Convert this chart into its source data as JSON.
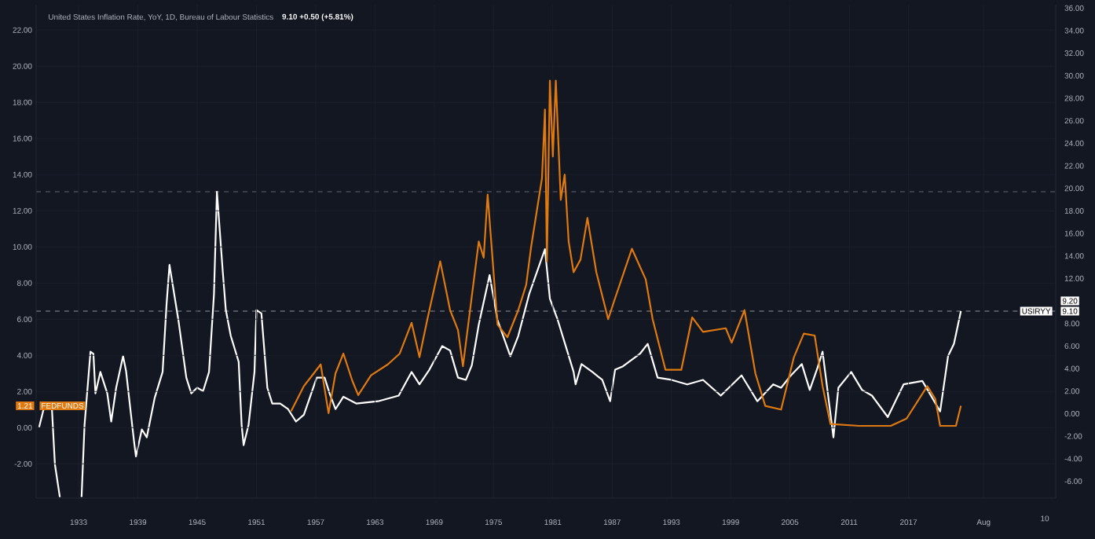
{
  "chart_data": {
    "type": "line",
    "title": "United States Inflation Rate, YoY, 1D, Bureau of Labour Statistics",
    "subtitle": "9.10 +0.50 (+5.81%)",
    "xlim": [
      1928.7,
      2031.9
    ],
    "xticks": [
      1933,
      1939,
      1945,
      1951,
      1957,
      1963,
      1969,
      1975,
      1981,
      1987,
      1993,
      1999,
      2005,
      2011,
      2017,
      {
        "value": 2024.6,
        "label": "Aug"
      }
    ],
    "ylim": [
      -3.9,
      23.4
    ],
    "yticks": [
      {
        "value": -2,
        "label": "-2.00"
      },
      {
        "value": 0,
        "label": "0.00"
      },
      {
        "value": 2,
        "label": "2.00"
      },
      {
        "value": 4,
        "label": "4.00"
      },
      {
        "value": 6,
        "label": "6.00"
      },
      {
        "value": 8,
        "label": "8.00"
      },
      {
        "value": 10,
        "label": "10.00"
      },
      {
        "value": 12,
        "label": "12.00"
      },
      {
        "value": 14,
        "label": "14.00"
      },
      {
        "value": 16,
        "label": "16.00"
      },
      {
        "value": 18,
        "label": "18.00"
      },
      {
        "value": 20,
        "label": "20.00"
      },
      {
        "value": 22,
        "label": "22.00"
      }
    ],
    "y2lim": [
      -7.5,
      36.3
    ],
    "y2ticks": [
      {
        "value": -6,
        "label": "-6.00"
      },
      {
        "value": -4,
        "label": "-4.00"
      },
      {
        "value": -2,
        "label": "-2.00"
      },
      {
        "value": 0,
        "label": "0.00"
      },
      {
        "value": 2,
        "label": "2.00"
      },
      {
        "value": 4,
        "label": "4.00"
      },
      {
        "value": 6,
        "label": "6.00"
      },
      {
        "value": 8,
        "label": "8.00"
      },
      {
        "value": 12,
        "label": "12.00"
      },
      {
        "value": 14,
        "label": "14.00"
      },
      {
        "value": 16,
        "label": "16.00"
      },
      {
        "value": 18,
        "label": "18.00"
      },
      {
        "value": 20,
        "label": "20.00"
      },
      {
        "value": 22,
        "label": "22.00"
      },
      {
        "value": 24,
        "label": "24.00"
      },
      {
        "value": 26,
        "label": "26.00"
      },
      {
        "value": 28,
        "label": "28.00"
      },
      {
        "value": 30,
        "label": "30.00"
      },
      {
        "value": 32,
        "label": "32.00"
      },
      {
        "value": 34,
        "label": "34.00"
      },
      {
        "value": 36,
        "label": "36.00"
      }
    ],
    "grid": true,
    "marker": "none",
    "series": [
      {
        "name": "FEDFUNDS",
        "color": "#e07a10",
        "x": [
          1954.5,
          1955.8,
          1956.8,
          1957.5,
          1958.3,
          1959.0,
          1959.8,
          1960.7,
          1961.3,
          1962.6,
          1964.3,
          1965.5,
          1966.7,
          1967.5,
          1968.3,
          1969.6,
          1970.6,
          1971.4,
          1971.9,
          1973.5,
          1974.0,
          1974.4,
          1975.4,
          1976.4,
          1977.5,
          1978.3,
          1978.8,
          1979.9,
          1980.2,
          1980.4,
          1980.7,
          1981.0,
          1981.3,
          1981.8,
          1982.2,
          1982.6,
          1983.1,
          1983.8,
          1984.5,
          1985.4,
          1986.6,
          1987.2,
          1989.0,
          1990.4,
          1991.1,
          1992.4,
          1994.0,
          1995.1,
          1996.2,
          1998.5,
          1999.1,
          2000.4,
          2001.5,
          2002.5,
          2004.1,
          2005.4,
          2006.4,
          2007.5,
          2008.3,
          2009.1,
          2012.0,
          2015.2,
          2016.8,
          2018.9,
          2019.7,
          2020.2,
          2021.8,
          2022.3
        ],
        "values": [
          0.9,
          2.3,
          3.0,
          3.5,
          0.8,
          3.0,
          4.1,
          2.6,
          1.8,
          2.9,
          3.5,
          4.1,
          5.8,
          3.9,
          6.0,
          9.2,
          6.5,
          5.4,
          3.4,
          10.3,
          9.4,
          12.9,
          5.7,
          5.0,
          6.5,
          7.9,
          10.0,
          13.8,
          17.6,
          9.2,
          19.2,
          15.0,
          19.2,
          12.6,
          14.0,
          10.3,
          8.6,
          9.3,
          11.6,
          8.6,
          6.0,
          7.0,
          9.9,
          8.2,
          6.0,
          3.2,
          3.2,
          6.1,
          5.3,
          5.5,
          4.7,
          6.5,
          3.0,
          1.2,
          1.0,
          3.9,
          5.2,
          5.1,
          2.3,
          0.2,
          0.1,
          0.1,
          0.5,
          2.3,
          1.6,
          0.1,
          0.1,
          1.21
        ]
      },
      {
        "name": "USIRYY",
        "color": "#ffffff",
        "axis": "y2",
        "x": [
          1929.0,
          1929.6,
          1930.3,
          1930.6,
          1931.1,
          1932.0,
          1933.3,
          1933.6,
          1934.2,
          1934.5,
          1934.7,
          1935.2,
          1935.9,
          1936.3,
          1936.8,
          1937.5,
          1937.8,
          1938.6,
          1938.8,
          1939.4,
          1939.9,
          1940.7,
          1941.5,
          1941.9,
          1942.2,
          1943.1,
          1943.9,
          1944.4,
          1945.0,
          1945.6,
          1946.2,
          1946.7,
          1947.0,
          1947.6,
          1947.9,
          1948.4,
          1949.2,
          1949.5,
          1949.7,
          1950.2,
          1950.8,
          1951.0,
          1951.5,
          1952.1,
          1952.6,
          1953.4,
          1954.2,
          1955.0,
          1955.8,
          1957.1,
          1957.9,
          1958.4,
          1959.0,
          1959.8,
          1961.1,
          1963.3,
          1965.4,
          1966.7,
          1967.5,
          1968.5,
          1969.8,
          1970.6,
          1971.4,
          1972.2,
          1972.8,
          1973.5,
          1974.6,
          1975.4,
          1976.7,
          1977.5,
          1978.6,
          1980.2,
          1980.7,
          1981.5,
          1982.3,
          1983.1,
          1983.3,
          1983.9,
          1985.0,
          1986.0,
          1986.8,
          1987.3,
          1988.1,
          1989.8,
          1990.6,
          1991.6,
          1993.0,
          1994.6,
          1996.2,
          1998.0,
          2000.1,
          2001.7,
          2003.3,
          2004.1,
          2005.1,
          2006.2,
          2007.0,
          2007.8,
          2008.3,
          2009.4,
          2009.9,
          2011.2,
          2012.3,
          2013.3,
          2014.9,
          2016.5,
          2018.4,
          2020.2,
          2021.0,
          2021.6,
          2022.3
        ],
        "values": [
          -1.2,
          0.9,
          0.4,
          -4.5,
          -7.4,
          null,
          -7.4,
          -1.0,
          5.5,
          5.3,
          1.8,
          3.7,
          1.8,
          -0.7,
          2.3,
          5.1,
          3.8,
          -2.4,
          -3.8,
          -1.4,
          -2.1,
          1.4,
          3.7,
          9.7,
          13.2,
          8.3,
          3.2,
          1.8,
          2.3,
          2.0,
          3.7,
          10.6,
          19.7,
          12.5,
          9.2,
          6.9,
          4.6,
          -1.0,
          -2.8,
          -1.0,
          3.7,
          9.2,
          8.9,
          2.3,
          0.9,
          0.9,
          0.4,
          -0.7,
          -0.1,
          3.2,
          3.2,
          1.8,
          0.4,
          1.5,
          0.9,
          1.1,
          1.6,
          3.7,
          2.6,
          3.9,
          6.0,
          5.6,
          3.2,
          3.0,
          4.3,
          7.9,
          12.3,
          8.3,
          5.1,
          6.9,
          10.6,
          14.6,
          10.2,
          8.3,
          6.0,
          3.7,
          2.6,
          4.4,
          3.7,
          3.0,
          1.1,
          3.9,
          4.2,
          5.3,
          6.2,
          3.2,
          3.0,
          2.6,
          3.0,
          1.6,
          3.4,
          1.1,
          2.6,
          2.3,
          3.4,
          4.4,
          2.1,
          4.1,
          5.5,
          -2.1,
          2.3,
          3.7,
          2.1,
          1.6,
          -0.3,
          2.6,
          2.9,
          0.2,
          5.1,
          6.2,
          9.1
        ]
      }
    ],
    "ref_lines": [
      {
        "axis": "y2",
        "value": 9.1,
        "color": "#b2b5be",
        "line_style": "dashed"
      },
      {
        "axis": "y2",
        "value": 19.7,
        "color": "#787b86",
        "line_style": "dashed"
      }
    ],
    "annotations": [
      "1.21",
      "9.10",
      "9.20",
      "10"
    ]
  }
}
